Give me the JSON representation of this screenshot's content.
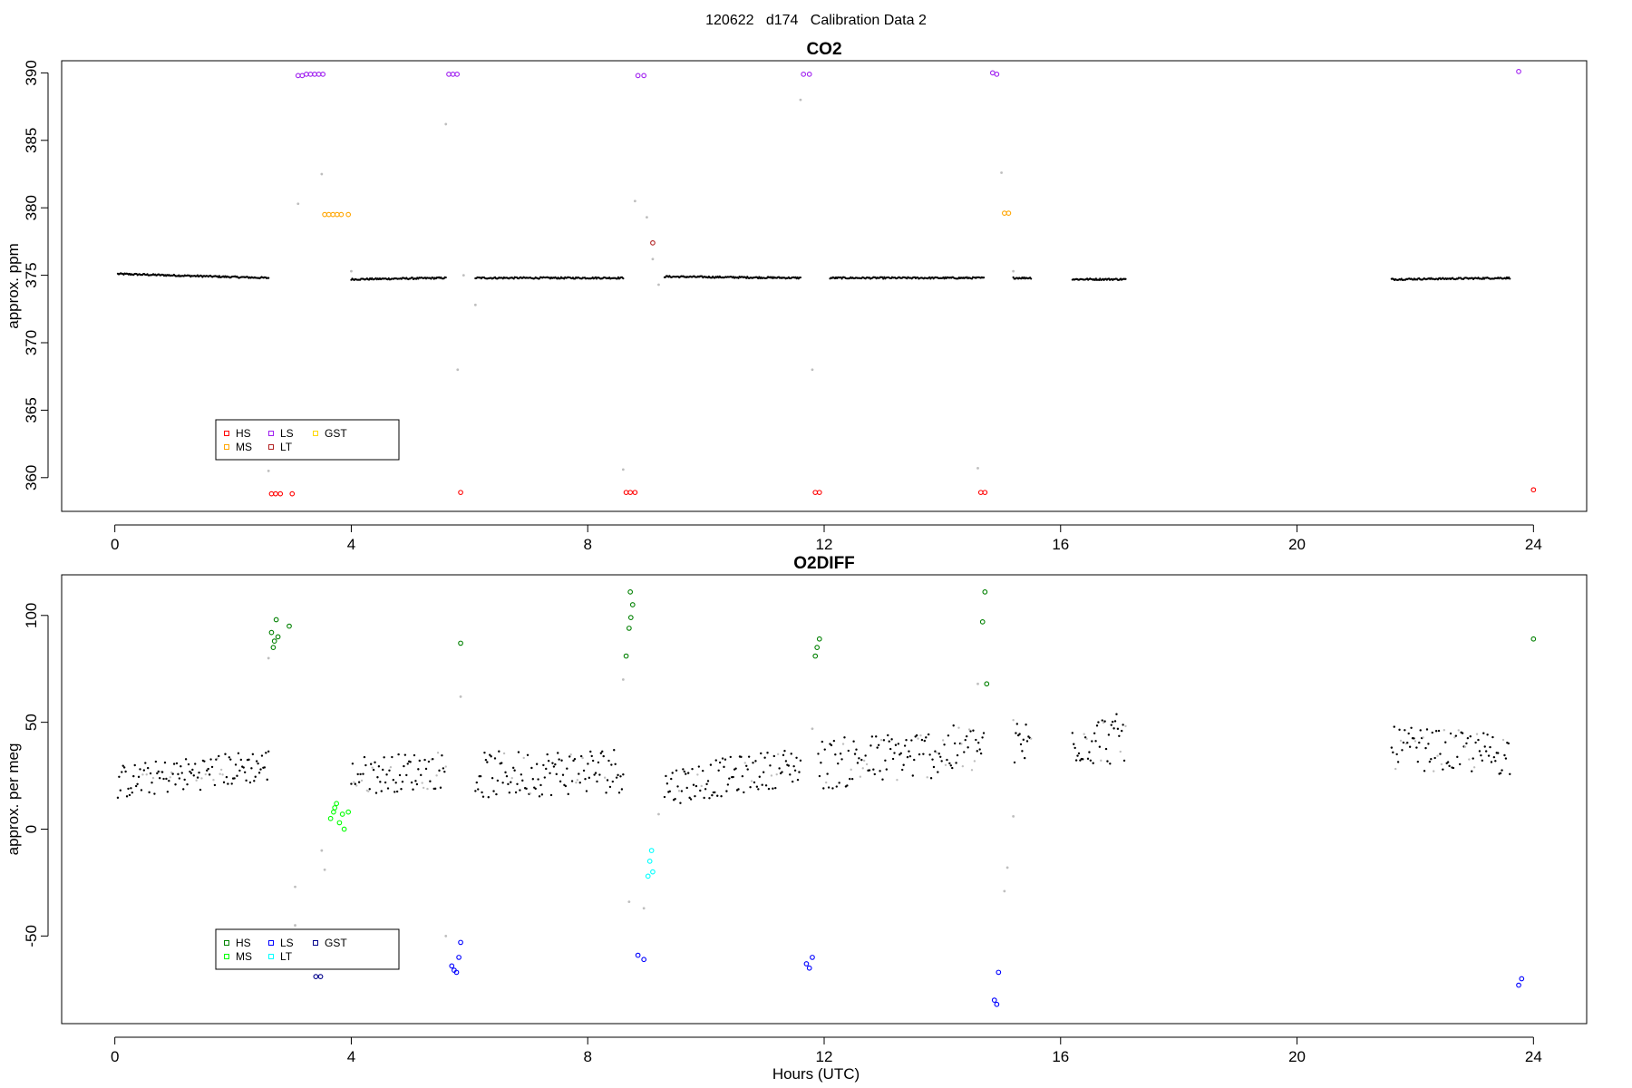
{
  "page_title": "120622   d174   Calibration Data 2",
  "xlabel": "Hours (UTC)",
  "chart_data": [
    {
      "type": "scatter",
      "title": "CO2",
      "ylabel": "approx. ppm",
      "xlim": [
        -0.9,
        24.9
      ],
      "ylim": [
        357.5,
        390.9
      ],
      "xticks": [
        0,
        4,
        8,
        12,
        16,
        20,
        24
      ],
      "yticks": [
        360,
        365,
        370,
        375,
        380,
        385,
        390
      ],
      "legend": {
        "position": "bottom-left",
        "entries": [
          "HS",
          "MS",
          "LS",
          "LT",
          "GST"
        ]
      },
      "colors": {
        "HS": "#ff0000",
        "MS": "#ffa500",
        "LS": "#a020f0",
        "LT": "#b22222",
        "GST": "#ffd700",
        "sample": "#000000",
        "flagged": "#bebebe"
      },
      "baseline_segments": [
        {
          "x": [
            0.05,
            2.6
          ],
          "y": [
            375.1,
            374.8
          ]
        },
        {
          "x": [
            4.0,
            5.6
          ],
          "y": [
            374.7,
            374.8
          ]
        },
        {
          "x": [
            6.1,
            8.6
          ],
          "y": [
            374.8,
            374.8
          ]
        },
        {
          "x": [
            9.3,
            11.6
          ],
          "y": [
            374.9,
            374.8
          ]
        },
        {
          "x": [
            12.1,
            14.7
          ],
          "y": [
            374.8,
            374.8
          ]
        },
        {
          "x": [
            15.2,
            15.5
          ],
          "y": [
            374.8,
            374.8
          ]
        },
        {
          "x": [
            16.2,
            17.1
          ],
          "y": [
            374.7,
            374.7
          ]
        },
        {
          "x": [
            21.6,
            23.6
          ],
          "y": [
            374.7,
            374.8
          ]
        }
      ],
      "flagged_points": [
        {
          "x": 2.6,
          "y": 360.5
        },
        {
          "x": 3.1,
          "y": 380.3
        },
        {
          "x": 3.5,
          "y": 382.5
        },
        {
          "x": 4.0,
          "y": 375.3
        },
        {
          "x": 5.6,
          "y": 386.2
        },
        {
          "x": 5.8,
          "y": 368.0
        },
        {
          "x": 5.9,
          "y": 375.0
        },
        {
          "x": 6.1,
          "y": 372.8
        },
        {
          "x": 8.6,
          "y": 360.6
        },
        {
          "x": 8.8,
          "y": 380.5
        },
        {
          "x": 9.0,
          "y": 379.3
        },
        {
          "x": 9.1,
          "y": 376.2
        },
        {
          "x": 9.2,
          "y": 374.3
        },
        {
          "x": 11.6,
          "y": 388.0
        },
        {
          "x": 11.8,
          "y": 368.0
        },
        {
          "x": 14.6,
          "y": 360.7
        },
        {
          "x": 15.0,
          "y": 382.6
        },
        {
          "x": 15.2,
          "y": 375.3
        }
      ],
      "series": [
        {
          "name": "HS",
          "points": [
            {
              "x": 2.65,
              "y": 358.8
            },
            {
              "x": 2.72,
              "y": 358.8
            },
            {
              "x": 2.8,
              "y": 358.8
            },
            {
              "x": 3.0,
              "y": 358.8
            },
            {
              "x": 5.85,
              "y": 358.9
            },
            {
              "x": 8.65,
              "y": 358.9
            },
            {
              "x": 8.72,
              "y": 358.9
            },
            {
              "x": 8.8,
              "y": 358.9
            },
            {
              "x": 11.85,
              "y": 358.9
            },
            {
              "x": 11.92,
              "y": 358.9
            },
            {
              "x": 14.65,
              "y": 358.9
            },
            {
              "x": 14.72,
              "y": 358.9
            },
            {
              "x": 24.0,
              "y": 359.1
            }
          ]
        },
        {
          "name": "MS",
          "points": [
            {
              "x": 3.55,
              "y": 379.5
            },
            {
              "x": 3.62,
              "y": 379.5
            },
            {
              "x": 3.69,
              "y": 379.5
            },
            {
              "x": 3.76,
              "y": 379.5
            },
            {
              "x": 3.83,
              "y": 379.5
            },
            {
              "x": 3.95,
              "y": 379.5
            },
            {
              "x": 15.05,
              "y": 379.6
            },
            {
              "x": 15.12,
              "y": 379.6
            }
          ]
        },
        {
          "name": "LS",
          "points": [
            {
              "x": 3.1,
              "y": 389.8
            },
            {
              "x": 3.17,
              "y": 389.8
            },
            {
              "x": 3.24,
              "y": 389.9
            },
            {
              "x": 3.31,
              "y": 389.9
            },
            {
              "x": 3.38,
              "y": 389.9
            },
            {
              "x": 3.45,
              "y": 389.9
            },
            {
              "x": 3.52,
              "y": 389.9
            },
            {
              "x": 5.65,
              "y": 389.9
            },
            {
              "x": 5.72,
              "y": 389.9
            },
            {
              "x": 5.79,
              "y": 389.9
            },
            {
              "x": 8.85,
              "y": 389.8
            },
            {
              "x": 8.95,
              "y": 389.8
            },
            {
              "x": 11.65,
              "y": 389.9
            },
            {
              "x": 11.75,
              "y": 389.9
            },
            {
              "x": 14.85,
              "y": 390.0
            },
            {
              "x": 14.92,
              "y": 389.9
            },
            {
              "x": 23.75,
              "y": 390.1
            }
          ]
        },
        {
          "name": "LT",
          "points": [
            {
              "x": 9.1,
              "y": 377.4
            }
          ]
        },
        {
          "name": "GST",
          "points": []
        }
      ]
    },
    {
      "type": "scatter",
      "title": "O2DIFF",
      "ylabel": "approx. per meg",
      "xlim": [
        -0.9,
        24.9
      ],
      "ylim": [
        -91,
        119
      ],
      "xticks": [
        0,
        4,
        8,
        12,
        16,
        20,
        24
      ],
      "yticks": [
        -50,
        0,
        50,
        100
      ],
      "legend": {
        "position": "bottom-left",
        "entries": [
          "HS",
          "MS",
          "LS",
          "LT",
          "GST"
        ]
      },
      "colors": {
        "HS": "#008000",
        "MS": "#00ff00",
        "LS": "#0000ff",
        "LT": "#00ffff",
        "GST": "#00008b",
        "sample": "#000000",
        "flagged": "#bebebe"
      },
      "baseline_segments": [
        {
          "x": [
            0.05,
            2.6
          ],
          "y": [
            22,
            30
          ],
          "spread": 8
        },
        {
          "x": [
            4.0,
            5.6
          ],
          "y": [
            25,
            28
          ],
          "spread": 9
        },
        {
          "x": [
            6.1,
            8.6
          ],
          "y": [
            25,
            28
          ],
          "spread": 11
        },
        {
          "x": [
            9.3,
            11.6
          ],
          "y": [
            20,
            30
          ],
          "spread": 9
        },
        {
          "x": [
            11.9,
            14.7
          ],
          "y": [
            30,
            38
          ],
          "spread": 12
        },
        {
          "x": [
            15.2,
            15.5
          ],
          "y": [
            40,
            40
          ],
          "spread": 12
        },
        {
          "x": [
            16.2,
            17.1
          ],
          "y": [
            42,
            42
          ],
          "spread": 12
        },
        {
          "x": [
            21.6,
            23.6
          ],
          "y": [
            38,
            35
          ],
          "spread": 10
        }
      ],
      "flagged_points": [
        {
          "x": 2.6,
          "y": 80
        },
        {
          "x": 3.05,
          "y": -27
        },
        {
          "x": 3.05,
          "y": -45
        },
        {
          "x": 3.5,
          "y": -10
        },
        {
          "x": 3.55,
          "y": -19
        },
        {
          "x": 5.6,
          "y": -50
        },
        {
          "x": 5.85,
          "y": 62
        },
        {
          "x": 8.6,
          "y": 70
        },
        {
          "x": 8.7,
          "y": -34
        },
        {
          "x": 8.95,
          "y": -37
        },
        {
          "x": 9.2,
          "y": 7
        },
        {
          "x": 11.8,
          "y": 47
        },
        {
          "x": 14.6,
          "y": 68
        },
        {
          "x": 15.1,
          "y": -18
        },
        {
          "x": 15.05,
          "y": -29
        },
        {
          "x": 15.2,
          "y": 6
        }
      ],
      "series": [
        {
          "name": "HS",
          "points": [
            {
              "x": 2.65,
              "y": 92
            },
            {
              "x": 2.7,
              "y": 88
            },
            {
              "x": 2.73,
              "y": 98
            },
            {
              "x": 2.76,
              "y": 90
            },
            {
              "x": 2.68,
              "y": 85
            },
            {
              "x": 2.95,
              "y": 95
            },
            {
              "x": 5.85,
              "y": 87
            },
            {
              "x": 8.65,
              "y": 81
            },
            {
              "x": 8.7,
              "y": 94
            },
            {
              "x": 8.73,
              "y": 99
            },
            {
              "x": 8.76,
              "y": 105
            },
            {
              "x": 8.72,
              "y": 111
            },
            {
              "x": 11.85,
              "y": 81
            },
            {
              "x": 11.88,
              "y": 85
            },
            {
              "x": 11.92,
              "y": 89
            },
            {
              "x": 14.68,
              "y": 97
            },
            {
              "x": 14.72,
              "y": 111
            },
            {
              "x": 14.75,
              "y": 68
            },
            {
              "x": 24.0,
              "y": 89
            }
          ]
        },
        {
          "name": "MS",
          "points": [
            {
              "x": 3.65,
              "y": 5
            },
            {
              "x": 3.7,
              "y": 8
            },
            {
              "x": 3.75,
              "y": 12
            },
            {
              "x": 3.8,
              "y": 3
            },
            {
              "x": 3.85,
              "y": 7
            },
            {
              "x": 3.88,
              "y": 0
            },
            {
              "x": 3.95,
              "y": 8
            },
            {
              "x": 3.72,
              "y": 10
            }
          ]
        },
        {
          "name": "LS",
          "points": [
            {
              "x": 5.7,
              "y": -64
            },
            {
              "x": 5.74,
              "y": -66
            },
            {
              "x": 5.78,
              "y": -67
            },
            {
              "x": 5.82,
              "y": -60
            },
            {
              "x": 5.85,
              "y": -53
            },
            {
              "x": 8.85,
              "y": -59
            },
            {
              "x": 8.95,
              "y": -61
            },
            {
              "x": 11.7,
              "y": -63
            },
            {
              "x": 11.75,
              "y": -65
            },
            {
              "x": 11.8,
              "y": -60
            },
            {
              "x": 14.88,
              "y": -80
            },
            {
              "x": 14.92,
              "y": -82
            },
            {
              "x": 14.95,
              "y": -67
            },
            {
              "x": 23.75,
              "y": -73
            },
            {
              "x": 23.8,
              "y": -70
            }
          ]
        },
        {
          "name": "LT",
          "points": [
            {
              "x": 9.02,
              "y": -22
            },
            {
              "x": 9.05,
              "y": -15
            },
            {
              "x": 9.08,
              "y": -10
            },
            {
              "x": 9.1,
              "y": -20
            }
          ]
        },
        {
          "name": "GST",
          "points": [
            {
              "x": 3.4,
              "y": -69
            },
            {
              "x": 3.48,
              "y": -69
            }
          ]
        }
      ]
    }
  ]
}
